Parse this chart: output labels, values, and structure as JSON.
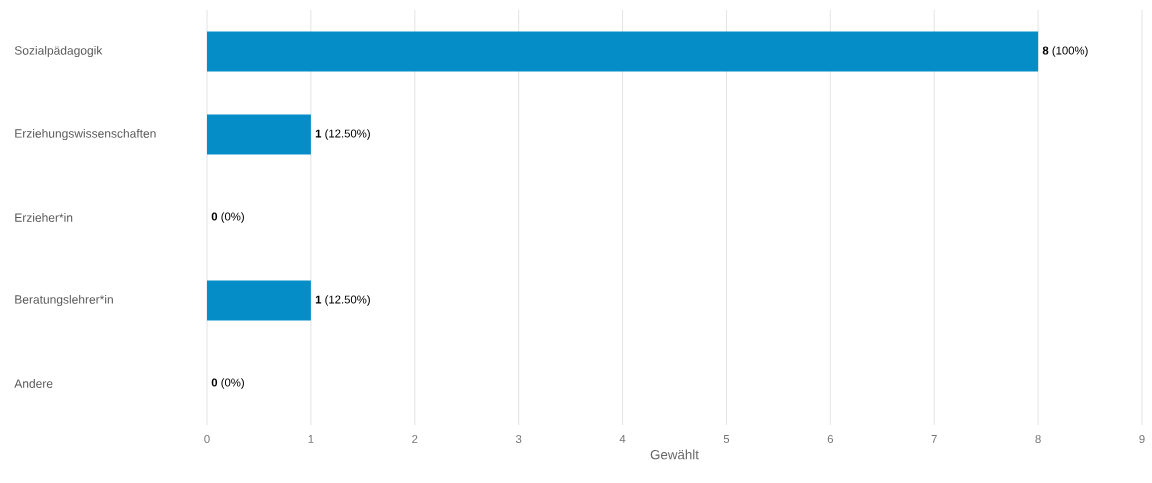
{
  "chart_data": {
    "type": "bar",
    "orientation": "horizontal",
    "xlabel": "Gewählt",
    "categories": [
      "Sozialpädagogik",
      "Erziehungswissenschaften",
      "Erzieher*in",
      "Beratungslehrer*in",
      "Andere"
    ],
    "values": [
      8,
      1,
      0,
      1,
      0
    ],
    "value_labels": [
      "**8** (100%)",
      "**1** (12.50%)",
      "**0** (0%)",
      "**1** (12.50%)",
      "**0** (0%)"
    ],
    "color": "#058dc7",
    "xlim": [
      0,
      9
    ],
    "xticks": [
      0,
      1,
      2,
      3,
      4,
      5,
      6,
      7,
      8,
      9
    ],
    "grid": "x"
  }
}
